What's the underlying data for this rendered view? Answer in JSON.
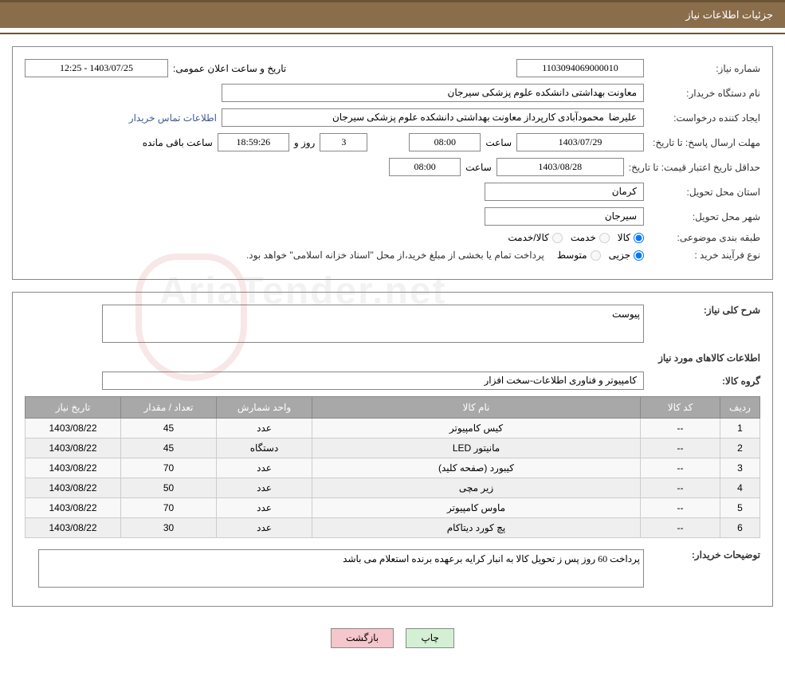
{
  "header": {
    "title": "جزئیات اطلاعات نیاز"
  },
  "fields": {
    "need_number_label": "شماره نیاز:",
    "need_number": "1103094069000010",
    "announce_date_label": "تاریخ و ساعت اعلان عمومی:",
    "announce_date": "1403/07/25 - 12:25",
    "buyer_org_label": "نام دستگاه خریدار:",
    "buyer_org": "معاونت بهداشتی دانشکده علوم پزشکی سیرجان",
    "requester_label": "ایجاد کننده درخواست:",
    "requester": "علیرضا  محمودآبادی کارپرداز معاونت بهداشتی دانشکده علوم پزشکی سیرجان",
    "contact_link": "اطلاعات تماس خریدار",
    "response_deadline_label": "مهلت ارسال پاسخ: تا تاریخ:",
    "response_date": "1403/07/29",
    "time_label": "ساعت",
    "response_time": "08:00",
    "days_num": "3",
    "days_and": "روز و",
    "countdown": "18:59:26",
    "remaining": "ساعت باقی مانده",
    "price_validity_label": "حداقل تاریخ اعتبار قیمت: تا تاریخ:",
    "price_validity_date": "1403/08/28",
    "price_validity_time": "08:00",
    "province_label": "استان محل تحویل:",
    "province": "کرمان",
    "city_label": "شهر محل تحویل:",
    "city": "سیرجان",
    "category_label": "طبقه بندی موضوعی:",
    "cat_goods": "کالا",
    "cat_service": "خدمت",
    "cat_both": "کالا/خدمت",
    "purchase_type_label": "نوع فرآیند خرید :",
    "pt_partial": "جزیی",
    "pt_medium": "متوسط",
    "payment_note": "پرداخت تمام یا بخشی از مبلغ خرید،از محل \"اسناد خزانه اسلامی\" خواهد بود.",
    "desc_label": "شرح کلی نیاز:",
    "desc_value": "پیوست",
    "goods_info_title": "اطلاعات کالاهای مورد نیاز",
    "goods_group_label": "گروه کالا:",
    "goods_group": "کامپیوتر و فناوری اطلاعات-سخت افزار",
    "buyer_notes_label": "توضیحات خریدار:",
    "buyer_notes": "پرداخت 60 روز پس ز تحویل کالا به انبار کرایه برعهده برنده استعلام می باشد"
  },
  "table": {
    "headers": {
      "row": "ردیف",
      "code": "کد کالا",
      "name": "نام کالا",
      "unit": "واحد شمارش",
      "qty": "تعداد / مقدار",
      "date": "تاریخ نیاز"
    },
    "rows": [
      {
        "n": "1",
        "code": "--",
        "name": "کیس کامپیوتر",
        "unit": "عدد",
        "qty": "45",
        "date": "1403/08/22"
      },
      {
        "n": "2",
        "code": "--",
        "name": "مانیتور LED",
        "unit": "دستگاه",
        "qty": "45",
        "date": "1403/08/22"
      },
      {
        "n": "3",
        "code": "--",
        "name": "کیبورد (صفحه کلید)",
        "unit": "عدد",
        "qty": "70",
        "date": "1403/08/22"
      },
      {
        "n": "4",
        "code": "--",
        "name": "زیر مچی",
        "unit": "عدد",
        "qty": "50",
        "date": "1403/08/22"
      },
      {
        "n": "5",
        "code": "--",
        "name": "ماوس کامپیوتر",
        "unit": "عدد",
        "qty": "70",
        "date": "1403/08/22"
      },
      {
        "n": "6",
        "code": "--",
        "name": "پچ کورد دیتاکام",
        "unit": "عدد",
        "qty": "30",
        "date": "1403/08/22"
      }
    ]
  },
  "buttons": {
    "print": "چاپ",
    "back": "بازگشت"
  },
  "watermark": "AriaTender.net"
}
